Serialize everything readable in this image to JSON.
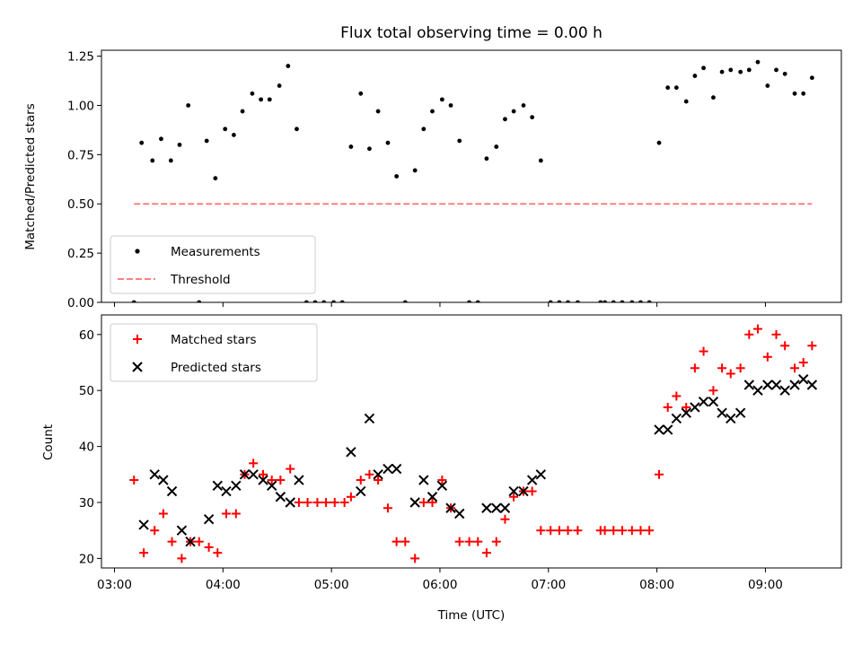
{
  "chart_data": [
    {
      "type": "scatter",
      "title": "Flux total observing time = 0.00 h",
      "ylabel": "Matched/Predicted stars",
      "ylim": [
        0,
        1.28
      ],
      "yticks": [
        "0.00",
        "0.25",
        "0.50",
        "0.75",
        "1.00",
        "1.25"
      ],
      "xlim_hours": [
        2.88,
        9.7
      ],
      "legend_position": "lower-left",
      "series": [
        {
          "name": "Measurements",
          "marker": "dot",
          "color": "#000000",
          "points": [
            [
              3.18,
              0.0
            ],
            [
              3.25,
              0.81
            ],
            [
              3.35,
              0.72
            ],
            [
              3.43,
              0.83
            ],
            [
              3.52,
              0.72
            ],
            [
              3.6,
              0.8
            ],
            [
              3.68,
              1.0
            ],
            [
              3.78,
              0.0
            ],
            [
              3.85,
              0.82
            ],
            [
              3.93,
              0.63
            ],
            [
              4.02,
              0.88
            ],
            [
              4.1,
              0.85
            ],
            [
              4.18,
              0.97
            ],
            [
              4.27,
              1.06
            ],
            [
              4.35,
              1.03
            ],
            [
              4.43,
              1.03
            ],
            [
              4.52,
              1.1
            ],
            [
              4.6,
              1.2
            ],
            [
              4.68,
              0.88
            ],
            [
              4.77,
              0.0
            ],
            [
              4.85,
              0.0
            ],
            [
              4.93,
              0.0
            ],
            [
              5.02,
              0.0
            ],
            [
              5.1,
              0.0
            ],
            [
              5.18,
              0.79
            ],
            [
              5.27,
              1.06
            ],
            [
              5.35,
              0.78
            ],
            [
              5.43,
              0.97
            ],
            [
              5.52,
              0.81
            ],
            [
              5.6,
              0.64
            ],
            [
              5.68,
              0.0
            ],
            [
              5.77,
              0.67
            ],
            [
              5.85,
              0.88
            ],
            [
              5.93,
              0.97
            ],
            [
              6.02,
              1.03
            ],
            [
              6.1,
              1.0
            ],
            [
              6.18,
              0.82
            ],
            [
              6.27,
              0.0
            ],
            [
              6.35,
              0.0
            ],
            [
              6.43,
              0.73
            ],
            [
              6.52,
              0.79
            ],
            [
              6.6,
              0.93
            ],
            [
              6.68,
              0.97
            ],
            [
              6.77,
              1.0
            ],
            [
              6.85,
              0.94
            ],
            [
              6.93,
              0.72
            ],
            [
              7.02,
              0.0
            ],
            [
              7.1,
              0.0
            ],
            [
              7.18,
              0.0
            ],
            [
              7.27,
              0.0
            ],
            [
              7.48,
              0.0
            ],
            [
              7.52,
              0.0
            ],
            [
              7.6,
              0.0
            ],
            [
              7.68,
              0.0
            ],
            [
              7.77,
              0.0
            ],
            [
              7.85,
              0.0
            ],
            [
              7.93,
              0.0
            ],
            [
              8.02,
              0.81
            ],
            [
              8.1,
              1.09
            ],
            [
              8.18,
              1.09
            ],
            [
              8.27,
              1.02
            ],
            [
              8.35,
              1.15
            ],
            [
              8.43,
              1.19
            ],
            [
              8.52,
              1.04
            ],
            [
              8.6,
              1.17
            ],
            [
              8.68,
              1.18
            ],
            [
              8.77,
              1.17
            ],
            [
              8.85,
              1.18
            ],
            [
              8.93,
              1.22
            ],
            [
              9.02,
              1.1
            ],
            [
              9.1,
              1.18
            ],
            [
              9.18,
              1.16
            ],
            [
              9.27,
              1.06
            ],
            [
              9.35,
              1.06
            ],
            [
              9.43,
              1.14
            ]
          ]
        },
        {
          "name": "Threshold",
          "marker": "dashed-line",
          "color": "#ff8080",
          "points": [
            [
              3.18,
              0.5
            ],
            [
              9.43,
              0.5
            ]
          ]
        }
      ]
    },
    {
      "type": "scatter",
      "xlabel": "Time (UTC)",
      "ylabel": "Count",
      "ylim": [
        18.3,
        63.5
      ],
      "yticks": [
        "20",
        "30",
        "40",
        "50",
        "60"
      ],
      "xlim_hours": [
        2.88,
        9.7
      ],
      "xticks": [
        "03:00",
        "04:00",
        "05:00",
        "06:00",
        "07:00",
        "08:00",
        "09:00"
      ],
      "legend_position": "upper-left",
      "series": [
        {
          "name": "Matched stars",
          "marker": "plus",
          "color": "#ff0000",
          "points": [
            [
              3.18,
              34
            ],
            [
              3.27,
              21
            ],
            [
              3.37,
              25
            ],
            [
              3.45,
              28
            ],
            [
              3.53,
              23
            ],
            [
              3.62,
              20
            ],
            [
              3.7,
              23
            ],
            [
              3.78,
              23
            ],
            [
              3.87,
              22
            ],
            [
              3.95,
              21
            ],
            [
              4.03,
              28
            ],
            [
              4.12,
              28
            ],
            [
              4.2,
              35
            ],
            [
              4.28,
              37
            ],
            [
              4.37,
              35
            ],
            [
              4.45,
              34
            ],
            [
              4.53,
              34
            ],
            [
              4.62,
              36
            ],
            [
              4.7,
              30
            ],
            [
              4.78,
              30
            ],
            [
              4.87,
              30
            ],
            [
              4.95,
              30
            ],
            [
              5.03,
              30
            ],
            [
              5.12,
              30
            ],
            [
              5.18,
              31
            ],
            [
              5.27,
              34
            ],
            [
              5.35,
              35
            ],
            [
              5.43,
              34
            ],
            [
              5.52,
              29
            ],
            [
              5.6,
              23
            ],
            [
              5.68,
              23
            ],
            [
              5.77,
              20
            ],
            [
              5.85,
              30
            ],
            [
              5.93,
              30
            ],
            [
              6.02,
              34
            ],
            [
              6.1,
              29
            ],
            [
              6.18,
              23
            ],
            [
              6.27,
              23
            ],
            [
              6.35,
              23
            ],
            [
              6.43,
              21
            ],
            [
              6.52,
              23
            ],
            [
              6.6,
              27
            ],
            [
              6.68,
              31
            ],
            [
              6.77,
              32
            ],
            [
              6.85,
              32
            ],
            [
              6.93,
              25
            ],
            [
              7.02,
              25
            ],
            [
              7.1,
              25
            ],
            [
              7.18,
              25
            ],
            [
              7.27,
              25
            ],
            [
              7.48,
              25
            ],
            [
              7.52,
              25
            ],
            [
              7.6,
              25
            ],
            [
              7.68,
              25
            ],
            [
              7.77,
              25
            ],
            [
              7.85,
              25
            ],
            [
              7.93,
              25
            ],
            [
              8.02,
              35
            ],
            [
              8.1,
              47
            ],
            [
              8.18,
              49
            ],
            [
              8.27,
              47
            ],
            [
              8.35,
              54
            ],
            [
              8.43,
              57
            ],
            [
              8.52,
              50
            ],
            [
              8.6,
              54
            ],
            [
              8.68,
              53
            ],
            [
              8.77,
              54
            ],
            [
              8.85,
              60
            ],
            [
              8.93,
              61
            ],
            [
              9.02,
              56
            ],
            [
              9.1,
              60
            ],
            [
              9.18,
              58
            ],
            [
              9.27,
              54
            ],
            [
              9.35,
              55
            ],
            [
              9.43,
              58
            ]
          ]
        },
        {
          "name": "Predicted stars",
          "marker": "x",
          "color": "#000000",
          "points": [
            [
              3.27,
              26
            ],
            [
              3.37,
              35
            ],
            [
              3.45,
              34
            ],
            [
              3.53,
              32
            ],
            [
              3.62,
              25
            ],
            [
              3.7,
              23
            ],
            [
              3.87,
              27
            ],
            [
              3.95,
              33
            ],
            [
              4.03,
              32
            ],
            [
              4.12,
              33
            ],
            [
              4.2,
              35
            ],
            [
              4.28,
              35
            ],
            [
              4.37,
              34
            ],
            [
              4.45,
              33
            ],
            [
              4.53,
              31
            ],
            [
              4.62,
              30
            ],
            [
              4.7,
              34
            ],
            [
              5.18,
              39
            ],
            [
              5.27,
              32
            ],
            [
              5.35,
              45
            ],
            [
              5.43,
              35
            ],
            [
              5.52,
              36
            ],
            [
              5.6,
              36
            ],
            [
              5.77,
              30
            ],
            [
              5.85,
              34
            ],
            [
              5.93,
              31
            ],
            [
              6.02,
              33
            ],
            [
              6.1,
              29
            ],
            [
              6.18,
              28
            ],
            [
              6.43,
              29
            ],
            [
              6.52,
              29
            ],
            [
              6.6,
              29
            ],
            [
              6.68,
              32
            ],
            [
              6.77,
              32
            ],
            [
              6.85,
              34
            ],
            [
              6.93,
              35
            ],
            [
              8.02,
              43
            ],
            [
              8.1,
              43
            ],
            [
              8.18,
              45
            ],
            [
              8.27,
              46
            ],
            [
              8.35,
              47
            ],
            [
              8.43,
              48
            ],
            [
              8.52,
              48
            ],
            [
              8.6,
              46
            ],
            [
              8.68,
              45
            ],
            [
              8.77,
              46
            ],
            [
              8.85,
              51
            ],
            [
              8.93,
              50
            ],
            [
              9.02,
              51
            ],
            [
              9.1,
              51
            ],
            [
              9.18,
              50
            ],
            [
              9.27,
              51
            ],
            [
              9.35,
              52
            ],
            [
              9.43,
              51
            ]
          ]
        }
      ]
    }
  ]
}
